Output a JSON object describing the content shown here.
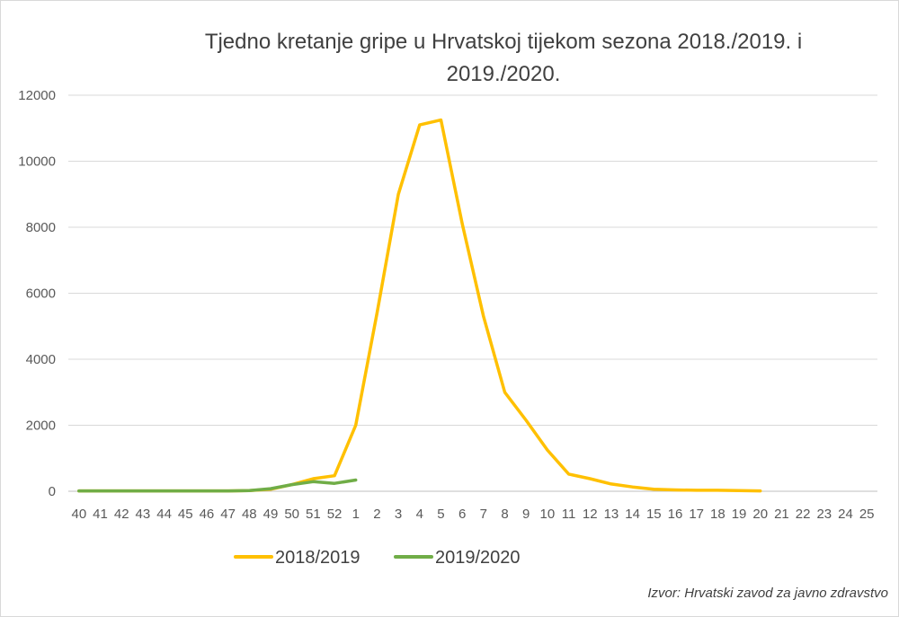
{
  "chart_data": {
    "type": "line",
    "title_line1": "Tjedno kretanje gripe u Hrvatskoj tijekom sezona 2018./2019. i",
    "title_line2": "2019./2020.",
    "categories": [
      "40",
      "41",
      "42",
      "43",
      "44",
      "45",
      "46",
      "47",
      "48",
      "49",
      "50",
      "51",
      "52",
      "1",
      "2",
      "3",
      "4",
      "5",
      "6",
      "7",
      "8",
      "9",
      "10",
      "11",
      "12",
      "13",
      "14",
      "15",
      "16",
      "17",
      "18",
      "19",
      "20",
      "21",
      "22",
      "23",
      "24",
      "25"
    ],
    "ylim": [
      0,
      12000
    ],
    "yticks": [
      "0",
      "2000",
      "4000",
      "6000",
      "8000",
      "10000",
      "12000"
    ],
    "grid": true,
    "legend_position": "bottom",
    "series": [
      {
        "name": "2018/2019",
        "color": "#ffc000",
        "values": [
          10,
          10,
          10,
          10,
          10,
          10,
          10,
          10,
          20,
          60,
          200,
          380,
          470,
          2000,
          5400,
          9000,
          11100,
          11250,
          8100,
          5300,
          3000,
          2150,
          1250,
          520,
          380,
          220,
          130,
          60,
          40,
          30,
          30,
          20,
          10,
          null,
          null,
          null,
          null,
          null
        ]
      },
      {
        "name": "2019/2020",
        "color": "#70ad47",
        "values": [
          10,
          10,
          10,
          10,
          10,
          10,
          10,
          10,
          20,
          80,
          200,
          290,
          240,
          340,
          null,
          null,
          null,
          null,
          null,
          null,
          null,
          null,
          null,
          null,
          null,
          null,
          null,
          null,
          null,
          null,
          null,
          null,
          null,
          null,
          null,
          null,
          null,
          null
        ]
      }
    ],
    "source": "Izvor: Hrvatski zavod za javno zdravstvo"
  }
}
